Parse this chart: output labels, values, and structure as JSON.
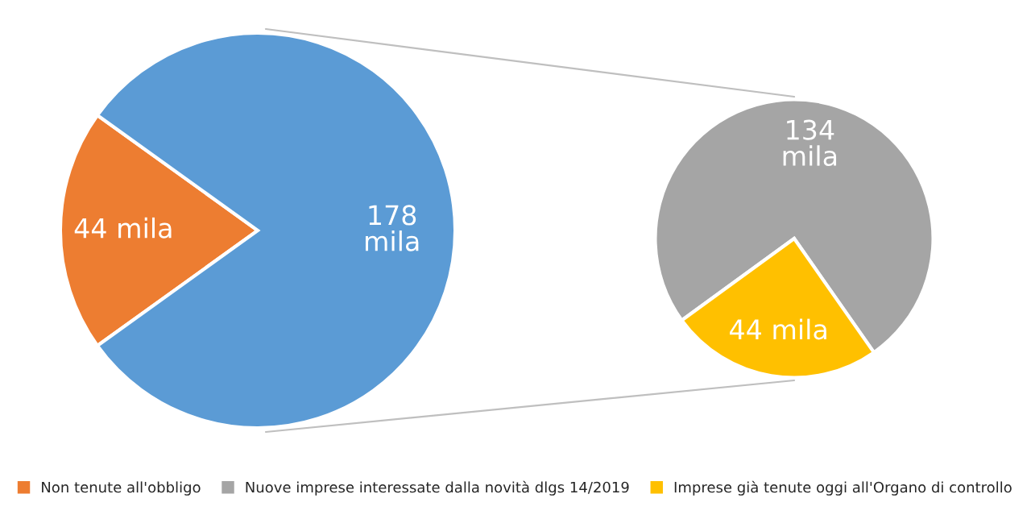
{
  "chart_data": [
    {
      "type": "pie",
      "categories": [
        "Non tenute all'obbligo",
        null
      ],
      "values": [
        44,
        178
      ],
      "colors": [
        "#ed7d31",
        "#5b9bd5"
      ],
      "value_labels": [
        "44 mila",
        "178\nmila"
      ],
      "legend": "bottom"
    },
    {
      "type": "pie",
      "categories": [
        "Nuove imprese interessate dalla novità dlgs 14/2019",
        "Imprese già tenute oggi all'Organo di controllo"
      ],
      "values": [
        134,
        44
      ],
      "colors": [
        "#a5a5a5",
        "#ffc000"
      ],
      "value_labels": [
        "134\nmila",
        "44 mila"
      ],
      "legend": "bottom"
    }
  ]
}
